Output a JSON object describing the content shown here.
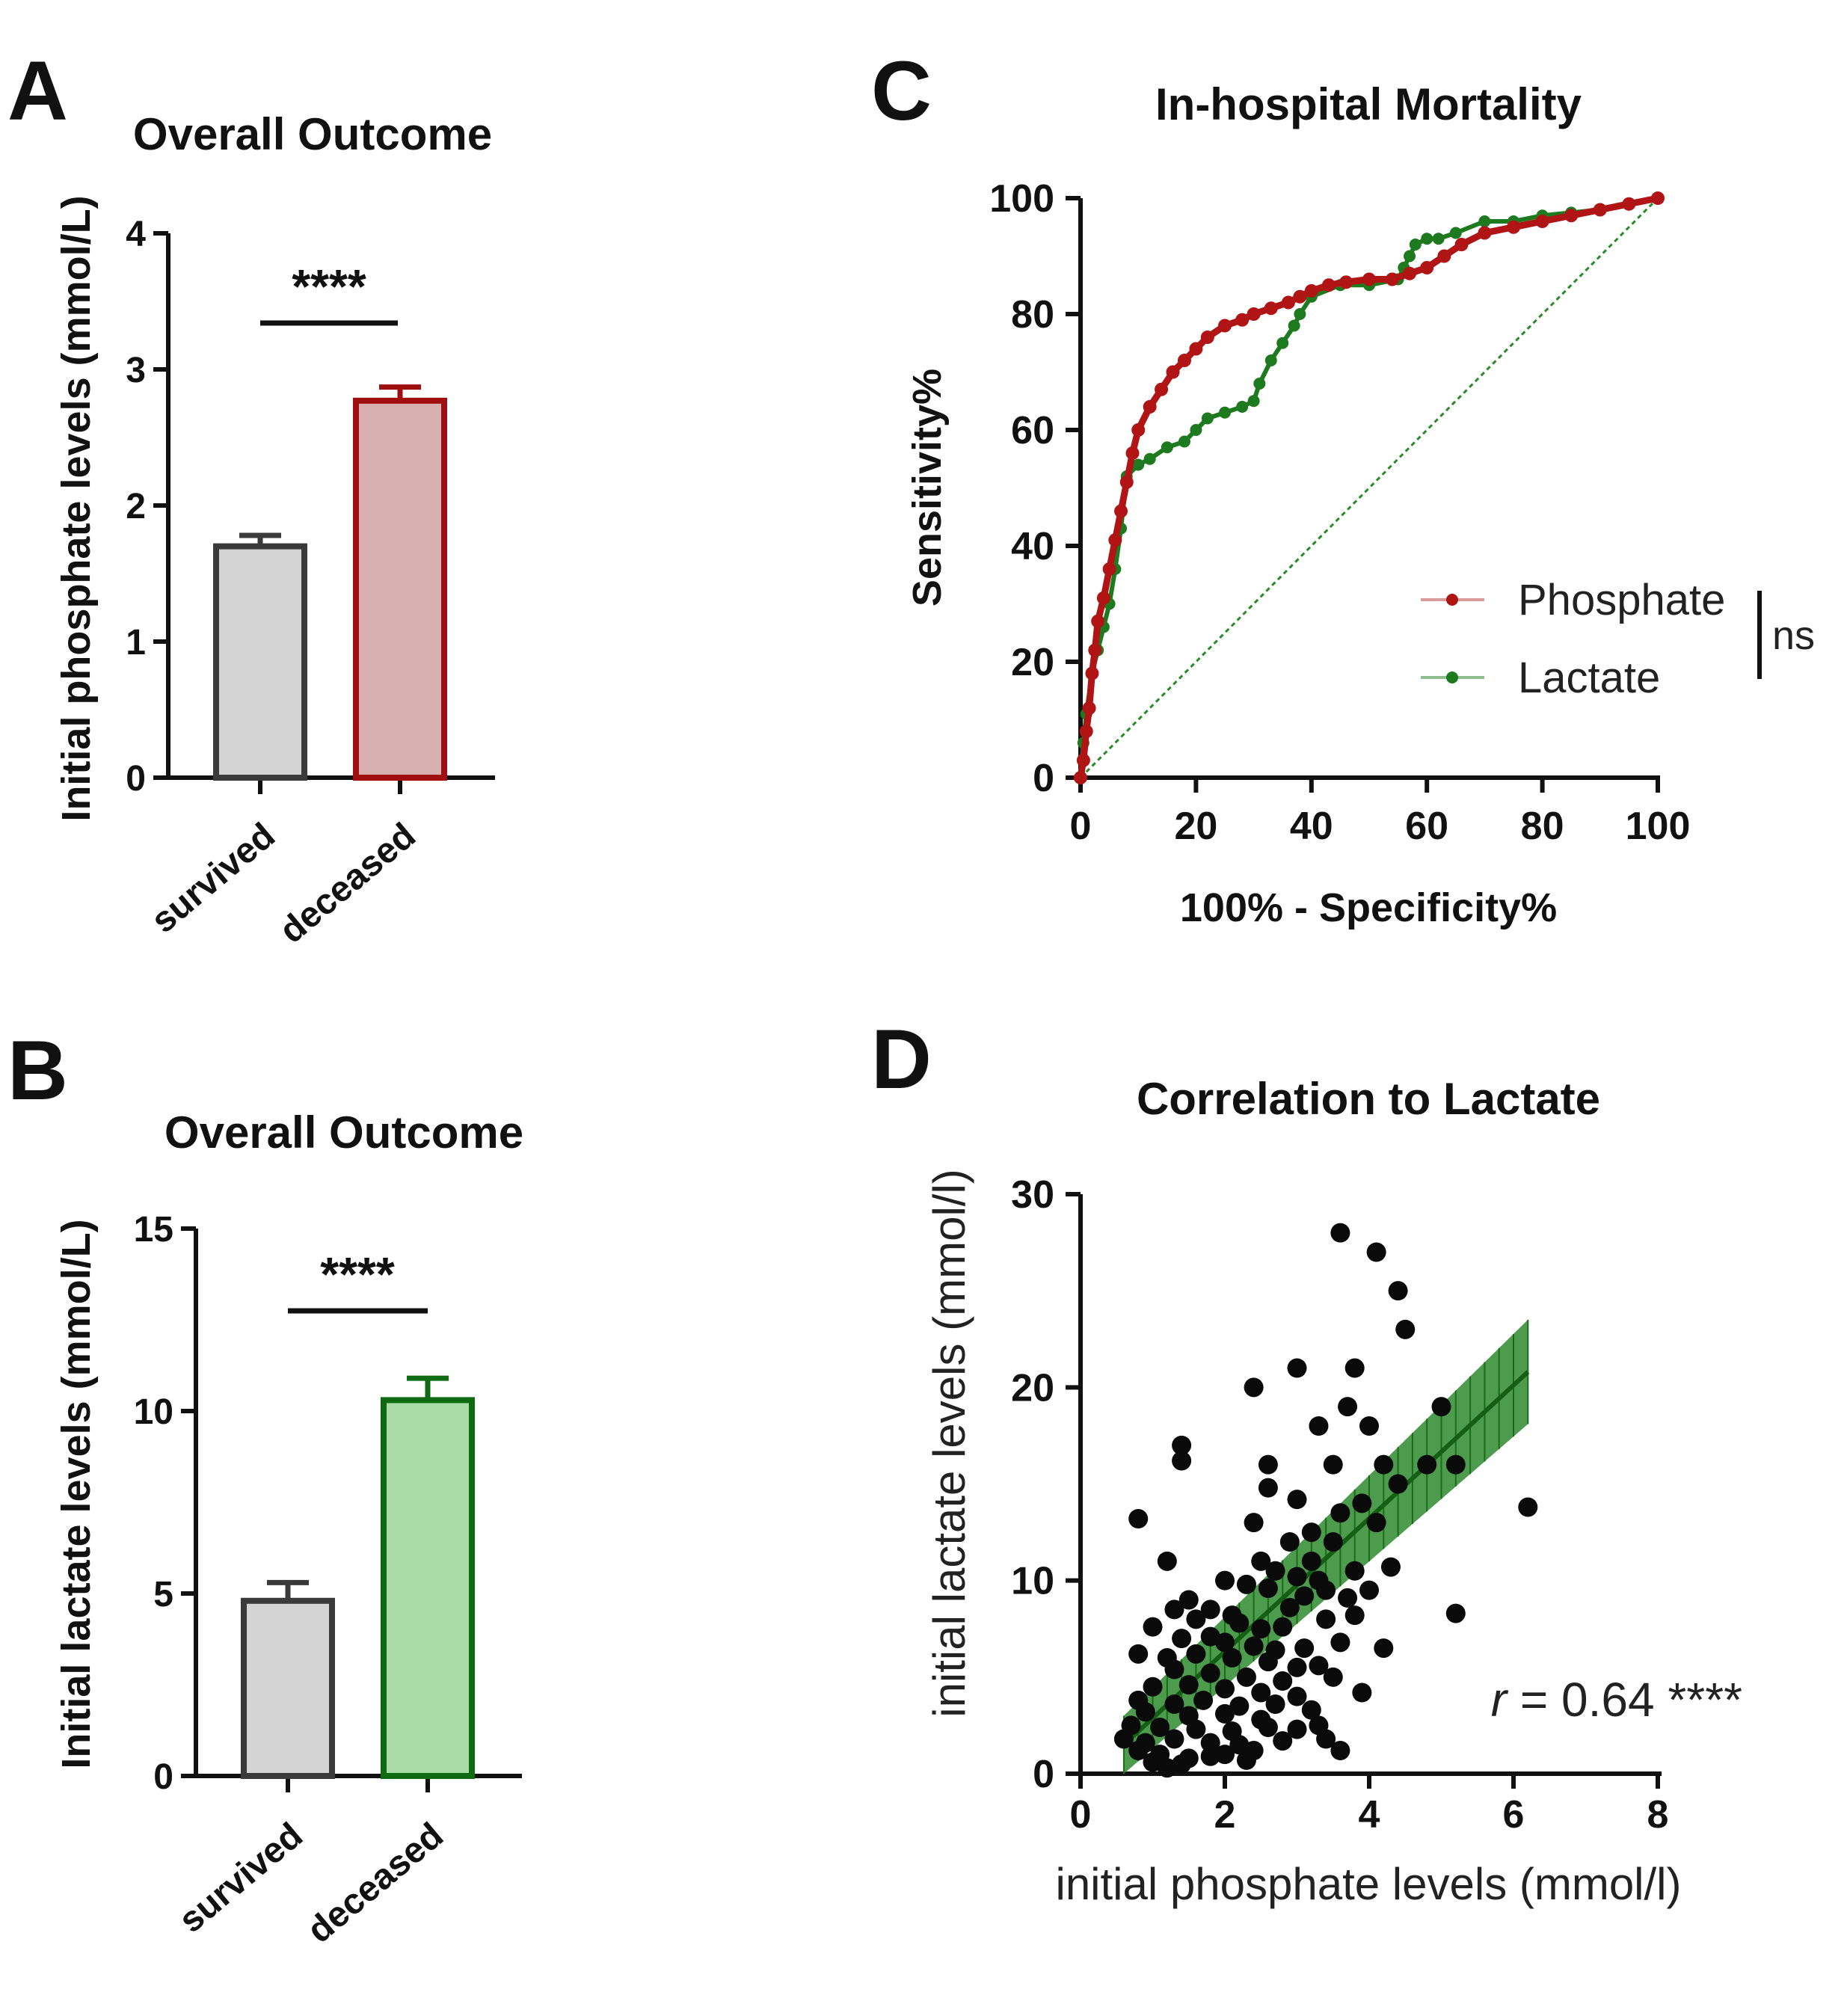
{
  "panels": {
    "A": {
      "letter": "A"
    },
    "B": {
      "letter": "B"
    },
    "C": {
      "letter": "C"
    },
    "D": {
      "letter": "D"
    }
  },
  "colors": {
    "dark_gray": "#3a3a3a",
    "light_gray": "#d4d4d4",
    "dark_red": "#a00f0f",
    "light_red": "#d9b0b0",
    "dark_green": "#0e6b12",
    "light_green": "#a8dba6",
    "phosphate_line": "#b01414",
    "lactate_line": "#1e7a1e",
    "black": "#111111"
  },
  "chart_data": [
    {
      "id": "A",
      "type": "bar",
      "title": "Overall Outcome",
      "ylabel": "Initial phosphate levels (mmol/L)",
      "xlabel": "",
      "categories": [
        "survived",
        "deceased"
      ],
      "values": [
        1.7,
        2.77
      ],
      "errors": [
        0.08,
        0.1
      ],
      "ylim": [
        0,
        4
      ],
      "yticks": [
        "0",
        "1",
        "2",
        "3",
        "4"
      ],
      "significance": "****"
    },
    {
      "id": "B",
      "type": "bar",
      "title": "Overall Outcome",
      "ylabel": "Initial lactate levels (mmol/L)",
      "xlabel": "",
      "categories": [
        "survived",
        "deceased"
      ],
      "values": [
        4.8,
        10.3
      ],
      "errors": [
        0.5,
        0.6
      ],
      "ylim": [
        0,
        15
      ],
      "yticks": [
        "0",
        "5",
        "10",
        "15"
      ],
      "significance": "****"
    },
    {
      "id": "C",
      "type": "line",
      "title": "In-hospital Mortality",
      "xlabel": "100% - Specificity%",
      "ylabel": "Sensitivity%",
      "xlim": [
        0,
        100
      ],
      "ylim": [
        0,
        100
      ],
      "xticks": [
        "0",
        "20",
        "40",
        "60",
        "80",
        "100"
      ],
      "yticks": [
        "0",
        "20",
        "40",
        "60",
        "80",
        "100"
      ],
      "legend_position": "right",
      "comparison_label": "ns",
      "series": [
        {
          "name": "Phosphate",
          "x": [
            0,
            0.5,
            1,
            1.5,
            2,
            2.5,
            3,
            4,
            5,
            6,
            7,
            8,
            9,
            10,
            12,
            14,
            16,
            18,
            20,
            22,
            25,
            28,
            30,
            33,
            36,
            38,
            40,
            43,
            46,
            50,
            54,
            57,
            60,
            63,
            66,
            70,
            75,
            80,
            85,
            90,
            95,
            100
          ],
          "y": [
            0,
            3,
            8,
            12,
            18,
            22,
            27,
            31,
            36,
            41,
            46,
            51,
            56,
            60,
            64,
            67,
            70,
            72,
            74,
            76,
            78,
            79,
            80,
            81,
            82,
            83,
            84,
            85,
            85.5,
            86,
            86,
            87,
            88,
            90,
            92,
            94,
            95,
            96,
            97,
            98,
            99,
            100
          ]
        },
        {
          "name": "Lactate",
          "x": [
            0,
            0.5,
            1,
            2,
            3,
            4,
            5,
            6,
            7,
            8,
            10,
            12,
            15,
            18,
            20,
            22,
            25,
            28,
            30,
            31,
            33,
            35,
            37,
            38,
            40,
            45,
            50,
            55,
            56,
            57,
            58,
            60,
            62,
            65,
            70,
            75,
            80,
            85,
            90,
            95,
            100
          ],
          "y": [
            0,
            6,
            11,
            18,
            22,
            26,
            30,
            36,
            43,
            52,
            54,
            55,
            57,
            58,
            60,
            62,
            63,
            64,
            65,
            68,
            72,
            75,
            78,
            80,
            83,
            85,
            85,
            86,
            88,
            90,
            92,
            93,
            93,
            94,
            96,
            96,
            97,
            97.5,
            98,
            99,
            100
          ]
        },
        {
          "name": "Reference",
          "x": [
            0,
            100
          ],
          "y": [
            0,
            100
          ]
        }
      ]
    },
    {
      "id": "D",
      "type": "scatter",
      "title": "Correlation to Lactate",
      "xlabel": "initial phosphate levels (mmol/l)",
      "ylabel": "initial lactate levels (mmol/l)",
      "xlim": [
        0,
        8
      ],
      "ylim": [
        0,
        30
      ],
      "xticks": [
        "0",
        "2",
        "4",
        "6",
        "8"
      ],
      "yticks": [
        "0",
        "10",
        "20",
        "30"
      ],
      "annotation": {
        "r_symbol": "r",
        "r_text": " = 0.64 ****",
        "r": 0.64
      },
      "regression": {
        "x_start": 0.6,
        "x_end": 6.2,
        "y_start": 1.5,
        "y_end": 20.8,
        "ci_start": 1.5,
        "ci_end": 2.7
      },
      "points": [
        [
          3.6,
          28
        ],
        [
          4.1,
          27
        ],
        [
          4.4,
          25
        ],
        [
          4.5,
          23
        ],
        [
          3.0,
          21
        ],
        [
          3.8,
          21
        ],
        [
          2.4,
          20
        ],
        [
          3.7,
          19
        ],
        [
          5.0,
          19
        ],
        [
          4.0,
          18
        ],
        [
          3.3,
          18
        ],
        [
          1.4,
          17
        ],
        [
          1.4,
          16.2
        ],
        [
          2.6,
          16
        ],
        [
          3.5,
          16
        ],
        [
          4.2,
          16
        ],
        [
          4.4,
          15
        ],
        [
          5.2,
          16
        ],
        [
          4.8,
          16
        ],
        [
          2.6,
          14.8
        ],
        [
          3.0,
          14.2
        ],
        [
          3.6,
          13.5
        ],
        [
          0.8,
          13.2
        ],
        [
          6.2,
          13.8
        ],
        [
          3.9,
          14
        ],
        [
          2.4,
          13
        ],
        [
          3.2,
          12.5
        ],
        [
          2.9,
          12
        ],
        [
          3.5,
          12
        ],
        [
          4.1,
          13
        ],
        [
          1.2,
          11
        ],
        [
          2.5,
          11
        ],
        [
          3.2,
          11
        ],
        [
          2.7,
          10.5
        ],
        [
          3.0,
          10.2
        ],
        [
          3.3,
          10
        ],
        [
          3.8,
          10.5
        ],
        [
          4.3,
          10.7
        ],
        [
          2.0,
          10
        ],
        [
          2.3,
          9.8
        ],
        [
          1.5,
          9
        ],
        [
          2.6,
          9.6
        ],
        [
          3.1,
          9.2
        ],
        [
          3.4,
          9.5
        ],
        [
          3.7,
          9.1
        ],
        [
          4.0,
          9.5
        ],
        [
          1.8,
          8.5
        ],
        [
          2.1,
          8.2
        ],
        [
          2.9,
          8.6
        ],
        [
          1.6,
          8
        ],
        [
          1.0,
          7.6
        ],
        [
          1.3,
          8.5
        ],
        [
          2.2,
          7.8
        ],
        [
          2.5,
          7.5
        ],
        [
          2.8,
          7.6
        ],
        [
          3.4,
          8
        ],
        [
          3.8,
          8.2
        ],
        [
          5.2,
          8.3
        ],
        [
          1.4,
          7
        ],
        [
          1.8,
          7.1
        ],
        [
          2.0,
          6.8
        ],
        [
          2.4,
          6.6
        ],
        [
          2.7,
          6.4
        ],
        [
          3.1,
          6.5
        ],
        [
          3.6,
          6.8
        ],
        [
          0.8,
          6.2
        ],
        [
          1.2,
          6
        ],
        [
          1.6,
          6.2
        ],
        [
          2.1,
          6
        ],
        [
          2.6,
          5.8
        ],
        [
          3.0,
          5.5
        ],
        [
          3.3,
          5.6
        ],
        [
          3.5,
          5
        ],
        [
          4.2,
          6.5
        ],
        [
          1.3,
          5.4
        ],
        [
          1.8,
          5.2
        ],
        [
          2.3,
          5
        ],
        [
          2.8,
          4.8
        ],
        [
          1.0,
          4.5
        ],
        [
          1.5,
          4.6
        ],
        [
          2.0,
          4.4
        ],
        [
          2.5,
          4.2
        ],
        [
          3.0,
          4
        ],
        [
          3.9,
          4.2
        ],
        [
          0.8,
          3.8
        ],
        [
          1.3,
          3.6
        ],
        [
          1.7,
          3.8
        ],
        [
          2.2,
          3.5
        ],
        [
          2.7,
          3.6
        ],
        [
          3.2,
          3.3
        ],
        [
          0.9,
          3.2
        ],
        [
          1.5,
          3
        ],
        [
          2.0,
          3.1
        ],
        [
          2.5,
          2.8
        ],
        [
          3.3,
          2.5
        ],
        [
          0.7,
          2.5
        ],
        [
          1.1,
          2.4
        ],
        [
          1.6,
          2.3
        ],
        [
          2.1,
          2.2
        ],
        [
          2.6,
          2.4
        ],
        [
          3.0,
          2.3
        ],
        [
          0.6,
          1.8
        ],
        [
          0.9,
          1.6
        ],
        [
          1.3,
          1.8
        ],
        [
          1.8,
          1.6
        ],
        [
          2.2,
          1.5
        ],
        [
          2.8,
          1.7
        ],
        [
          3.4,
          1.8
        ],
        [
          0.8,
          1.2
        ],
        [
          1.1,
          1.0
        ],
        [
          1.5,
          0.8
        ],
        [
          2.0,
          1.0
        ],
        [
          2.4,
          1.2
        ],
        [
          3.6,
          1.2
        ],
        [
          1.0,
          0.6
        ],
        [
          1.4,
          0.5
        ],
        [
          1.8,
          0.9
        ],
        [
          2.3,
          0.7
        ],
        [
          1.2,
          0.3
        ]
      ]
    }
  ]
}
